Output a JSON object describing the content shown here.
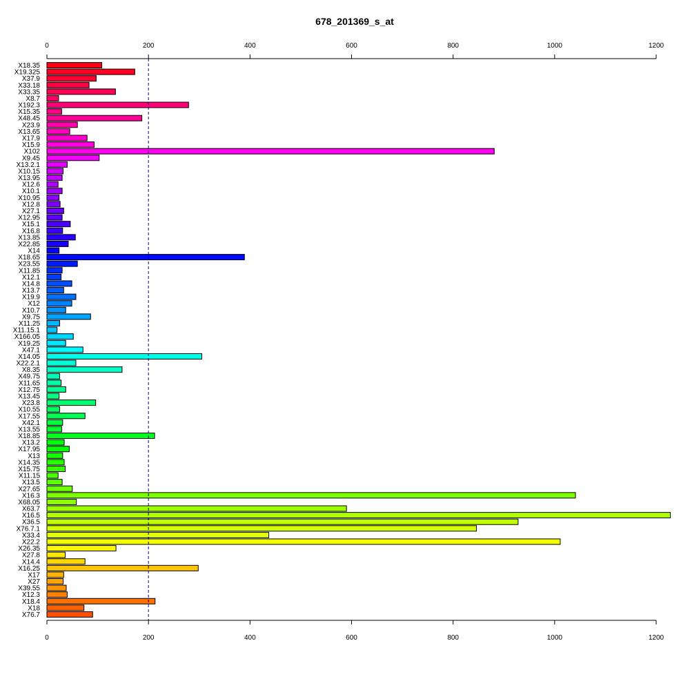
{
  "chart_data": {
    "type": "bar",
    "orientation": "horizontal",
    "title": "678_201369_s_at",
    "xlabel": "",
    "ylabel": "",
    "xlim": [
      0,
      1230
    ],
    "xticks": [
      0,
      200,
      400,
      600,
      800,
      1000,
      1200
    ],
    "reference_line": 200,
    "grid": false,
    "legend": "none",
    "categories": [
      "X18.35",
      "X19.325",
      "X37.9",
      "X33.18",
      "X33.35",
      "X8.7",
      "X192.3",
      "X15.35",
      "X48.45",
      "X23.9",
      "X13.65",
      "X17.9",
      "X15.9",
      "X102",
      "X9.45",
      "X13.2.1",
      "X10.15",
      "X13.95",
      "X12.6",
      "X10.1",
      "X10.95",
      "X12.8",
      "X27.1",
      "X12.95",
      "X15.1",
      "X16.8",
      "X13.85",
      "X22.85",
      "X14",
      "X18.65",
      "X23.55",
      "X11.85",
      "X12.1",
      "X14.8",
      "X13.7",
      "X19.9",
      "X12",
      "X10.7",
      "X9.75",
      "X11.25",
      "X11.15.1",
      "X166.05",
      "X19.25",
      "X47.1",
      "X14.05",
      "X22.2.1",
      "X8.35",
      "X49.75",
      "X11.65",
      "X12.75",
      "X13.45",
      "X23.8",
      "X10.55",
      "X17.55",
      "X42.1",
      "X13.55",
      "X18.85",
      "X13.2",
      "X17.95",
      "X13",
      "X14.35",
      "X15.75",
      "X11.15",
      "X13.5",
      "X27.65",
      "X16.3",
      "X68.05",
      "X63.7",
      "X16.5",
      "X36.5",
      "X76.7.1",
      "X33.4",
      "X22.2",
      "X26.35",
      "X27.8",
      "X14.4",
      "X16.25",
      "X17",
      "X27",
      "X39.55",
      "X12.3",
      "X18.4",
      "X18",
      "X76.7"
    ],
    "values": [
      108,
      173,
      97,
      83,
      135,
      23,
      279,
      29,
      187,
      60,
      45,
      79,
      93,
      881,
      103,
      40,
      32,
      30,
      22,
      30,
      24,
      26,
      33,
      30,
      46,
      31,
      56,
      42,
      24,
      389,
      60,
      30,
      28,
      49,
      33,
      57,
      49,
      37,
      86,
      25,
      20,
      52,
      37,
      71,
      305,
      57,
      148,
      25,
      28,
      37,
      24,
      96,
      25,
      75,
      31,
      29,
      212,
      34,
      44,
      31,
      34,
      36,
      22,
      30,
      50,
      1041,
      58,
      590,
      1228,
      928,
      846,
      437,
      1011,
      136,
      36,
      75,
      298,
      33,
      32,
      38,
      40,
      213,
      73,
      90
    ],
    "colors": [
      "#ff0011",
      "#ff0022",
      "#ff0033",
      "#ff0044",
      "#ff0055",
      "#ff0066",
      "#ff0077",
      "#ff0088",
      "#ff0099",
      "#ff00aa",
      "#ff00bb",
      "#ff00cc",
      "#ff00dd",
      "#ff00ee",
      "#f400ff",
      "#e300ff",
      "#d200ff",
      "#c100ff",
      "#b000ff",
      "#9f00ff",
      "#8e00ff",
      "#7d00ff",
      "#6c00ff",
      "#5b00ff",
      "#4a00ff",
      "#3900ff",
      "#2800ff",
      "#1700ff",
      "#0600ff",
      "#000aff",
      "#001bff",
      "#002cff",
      "#003dff",
      "#004eff",
      "#005fff",
      "#0070ff",
      "#0081ff",
      "#0092ff",
      "#00a3ff",
      "#00b4ff",
      "#00c5ff",
      "#00d6ff",
      "#00e7ff",
      "#00f8ff",
      "#00ffe9",
      "#00ffd8",
      "#00ffc7",
      "#00ffb6",
      "#00ffa5",
      "#00ff94",
      "#00ff83",
      "#00ff72",
      "#00ff61",
      "#00ff50",
      "#00ff3f",
      "#00ff2e",
      "#00ff1d",
      "#00ff0c",
      "#05ff00",
      "#16ff00",
      "#27ff00",
      "#38ff00",
      "#49ff00",
      "#5aff00",
      "#6bff00",
      "#7cff00",
      "#8dff00",
      "#9eff00",
      "#afff00",
      "#c0ff00",
      "#d1ff00",
      "#e2ff00",
      "#f3ff00",
      "#fff900",
      "#ffe800",
      "#ffd700",
      "#ffc600",
      "#ffb500",
      "#ffa400",
      "#ff9300",
      "#ff8200",
      "#ff7100",
      "#ff6000",
      "#ff4f00"
    ]
  }
}
